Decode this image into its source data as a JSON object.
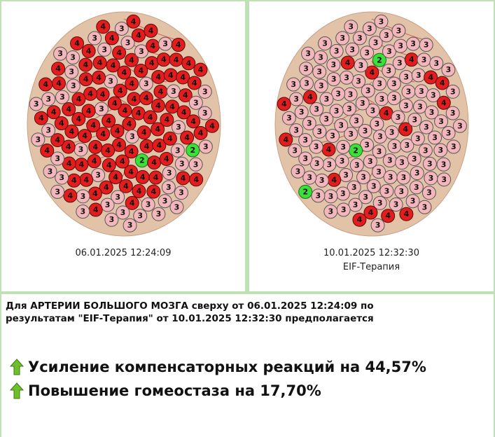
{
  "panels": [
    {
      "date": "06.01.2025 12:24:09",
      "markers": [
        4,
        4,
        4,
        3,
        4,
        4,
        4,
        4,
        4,
        4,
        4,
        4,
        3,
        4,
        4,
        4,
        4,
        4,
        4,
        4,
        4,
        4,
        4,
        4,
        2,
        4,
        4,
        4,
        3,
        4,
        4,
        3,
        4,
        4,
        4,
        4,
        4,
        4,
        4,
        4,
        4,
        4,
        4,
        3,
        4,
        4,
        4,
        4,
        3,
        4,
        4,
        4,
        4,
        4,
        4,
        3,
        4,
        4,
        4,
        4,
        3,
        4,
        4,
        3,
        4,
        4,
        4,
        3,
        4,
        4,
        4,
        3,
        4,
        4,
        3,
        4,
        4,
        4,
        3,
        4,
        3,
        4,
        4,
        3,
        3,
        4,
        4,
        4,
        3,
        4,
        4,
        3,
        3,
        4,
        4,
        3,
        4,
        2,
        3,
        4,
        3,
        4,
        3,
        3,
        4,
        4,
        3,
        4,
        3,
        3,
        4,
        3,
        4,
        3,
        3,
        4,
        4,
        3,
        3,
        4,
        3,
        3,
        4,
        3,
        4,
        3,
        3,
        4,
        4,
        3,
        4,
        3,
        3,
        4,
        3,
        4,
        3,
        3,
        4,
        4,
        3,
        4,
        3,
        3,
        4,
        3,
        4,
        3,
        3,
        4
      ]
    },
    {
      "date": "10.01.2025 12:32:30",
      "caption": "EIF-Терапия",
      "markers": [
        3,
        3,
        3,
        3,
        3,
        4,
        3,
        3,
        3,
        3,
        3,
        3,
        3,
        3,
        2,
        3,
        3,
        3,
        3,
        3,
        3,
        4,
        3,
        3,
        3,
        3,
        3,
        3,
        3,
        3,
        3,
        3,
        3,
        3,
        3,
        3,
        4,
        3,
        3,
        3,
        3,
        3,
        3,
        4,
        3,
        3,
        3,
        3,
        3,
        3,
        3,
        3,
        3,
        3,
        3,
        3,
        3,
        2,
        3,
        3,
        3,
        3,
        4,
        3,
        3,
        3,
        3,
        3,
        3,
        4,
        3,
        3,
        3,
        3,
        3,
        3,
        3,
        3,
        3,
        3,
        4,
        3,
        3,
        3,
        3,
        3,
        4,
        3,
        3,
        3,
        3,
        3,
        3,
        3,
        4,
        3,
        3,
        3,
        3,
        3,
        3,
        3,
        4,
        3,
        3,
        3,
        3,
        3,
        4,
        3,
        3,
        3,
        3,
        3,
        3,
        4,
        3,
        3,
        3,
        3,
        3,
        4,
        3,
        3,
        3,
        3,
        3,
        3,
        3,
        4,
        3,
        3,
        3,
        3,
        4,
        3,
        3,
        3,
        3,
        3,
        4,
        3,
        3,
        3,
        3,
        2,
        3,
        3,
        4,
        3
      ]
    }
  ],
  "summary": {
    "text": "Для АРТЕРИИ БОЛЬШОГО МОЗГА сверху от 06.01.2025 12:24:09 по результатам \"EIF-Терапия\" от 10.01.2025 12:32:30 предполагается",
    "results": [
      "Усиление компенсаторных реакций на 44,57%",
      "Повышение гомеостаза на 17,70%"
    ]
  }
}
